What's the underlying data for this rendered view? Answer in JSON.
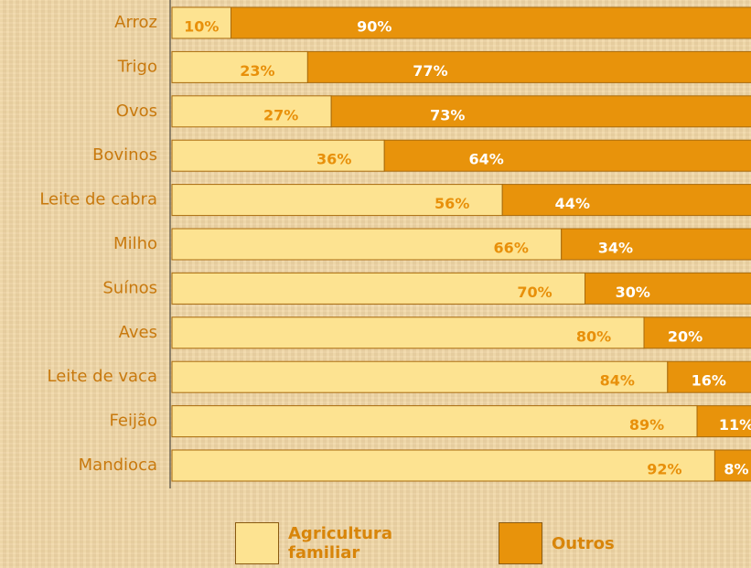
{
  "chart_data": {
    "type": "stacked_bar_horizontal",
    "categories": [
      "Arroz",
      "Trigo",
      "Ovos",
      "Bovinos",
      "Leite de cabra",
      "Milho",
      "Suínos",
      "Aves",
      "Leite de vaca",
      "Feijão",
      "Mandioca"
    ],
    "series": [
      {
        "name": "Agricultura familiar",
        "color": "#fde391",
        "label_color": "#e8900a",
        "values": [
          10,
          23,
          27,
          36,
          56,
          66,
          70,
          80,
          84,
          89,
          92
        ],
        "value_labels": [
          "10%",
          "23%",
          "27%",
          "36%",
          "56%",
          "66%",
          "70%",
          "80%",
          "84%",
          "89%",
          "92%"
        ]
      },
      {
        "name": "Outros",
        "color": "#e8930b",
        "label_color": "#ffffff",
        "values": [
          90,
          77,
          73,
          64,
          44,
          34,
          30,
          20,
          16,
          11,
          8
        ],
        "value_labels": [
          "90%",
          "77%",
          "73%",
          "64%",
          "44%",
          "34%",
          "30%",
          "20%",
          "16%",
          "11%",
          "8%"
        ]
      }
    ],
    "xlim": [
      0,
      100
    ]
  }
}
